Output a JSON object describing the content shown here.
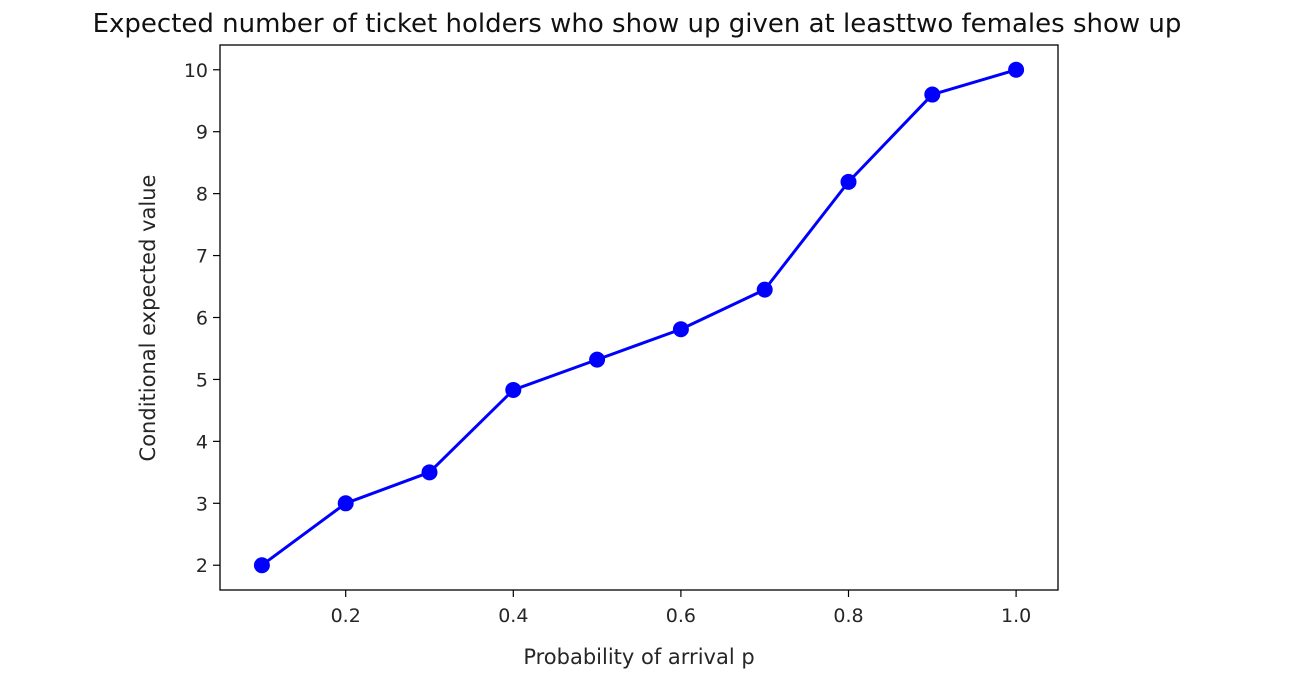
{
  "chart_data": {
    "type": "line",
    "title": "Expected number of ticket holders who show up given at leasttwo females show up",
    "xlabel": "Probability of arrival p",
    "ylabel": "Conditional expected value",
    "xlim": [
      0.05,
      1.05
    ],
    "ylim": [
      1.6,
      10.4
    ],
    "xticks": [
      "0.2",
      "0.4",
      "0.6",
      "0.8",
      "1.0"
    ],
    "yticks": [
      "2",
      "3",
      "4",
      "5",
      "6",
      "7",
      "8",
      "9",
      "10"
    ],
    "grid": false,
    "series": [
      {
        "color": "#0000ff",
        "marker": "circle",
        "x": [
          0.1,
          0.2,
          0.3,
          0.4,
          0.5,
          0.6,
          0.7,
          0.8,
          0.9,
          1.0
        ],
        "y": [
          2.0,
          3.0,
          3.5,
          4.83,
          5.32,
          5.81,
          6.45,
          8.19,
          9.6,
          10.0
        ]
      }
    ]
  }
}
